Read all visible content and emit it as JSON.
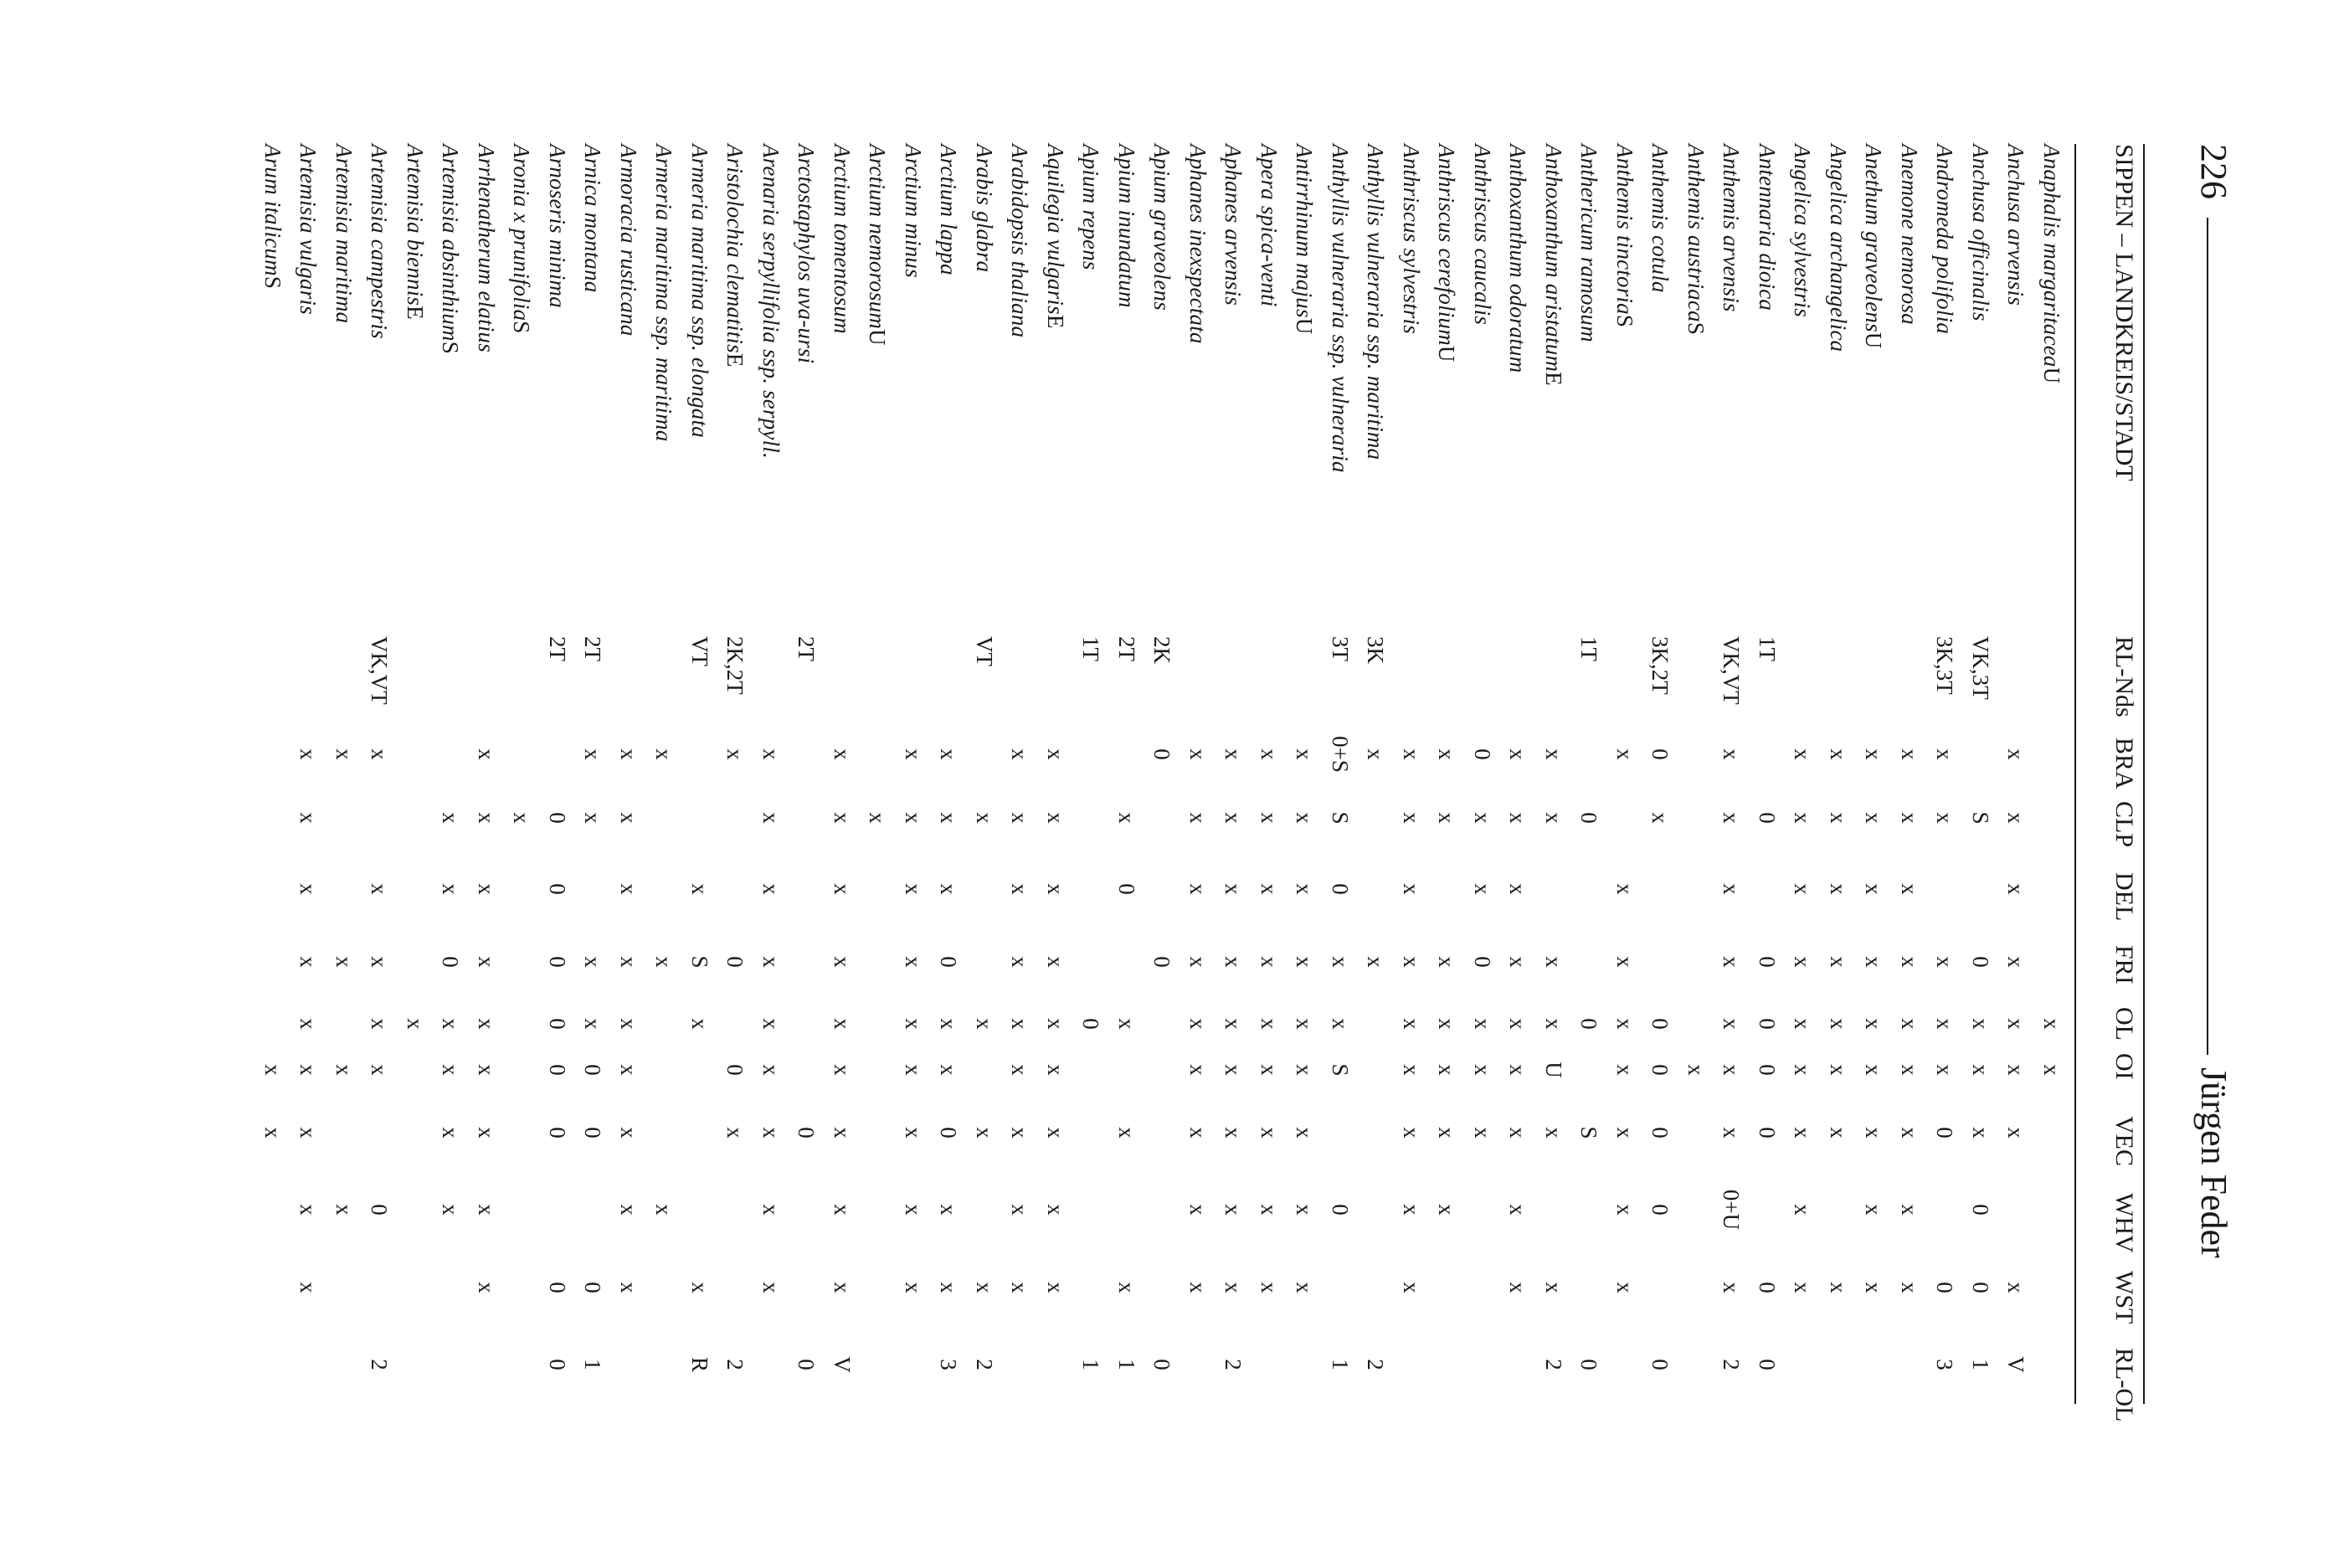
{
  "header": {
    "page_number": "226",
    "author": "Jürgen Feder"
  },
  "columns": [
    "SIPPEN – LANDKREIS/STADT",
    "RL-Nds",
    "BRA",
    "CLP",
    "DEL",
    "FRI",
    "OL",
    "OI",
    "VEC",
    "WHV",
    "WST",
    "RL-OL"
  ],
  "rows": [
    {
      "name": "Anaphalis margaritacea",
      "suffix": " U",
      "rl": "",
      "c": [
        "",
        "",
        "",
        "",
        "x",
        "x",
        "",
        "",
        "",
        "",
        ""
      ]
    },
    {
      "name": "Anchusa arvensis",
      "suffix": "",
      "rl": "",
      "c": [
        "x",
        "x",
        "x",
        "x",
        "x",
        "x",
        "x",
        "",
        "x",
        "V"
      ]
    },
    {
      "name": "Anchusa officinalis",
      "suffix": "",
      "rl": "VK,3T",
      "c": [
        "",
        "S",
        "",
        "0",
        "x",
        "x",
        "x",
        "0",
        "0",
        "1"
      ]
    },
    {
      "name": "Andromeda polifolia",
      "suffix": "",
      "rl": "3K,3T",
      "c": [
        "x",
        "x",
        "",
        "x",
        "x",
        "x",
        "0",
        "",
        "0",
        "3"
      ]
    },
    {
      "name": "Anemone nemorosa",
      "suffix": "",
      "rl": "",
      "c": [
        "x",
        "x",
        "x",
        "x",
        "x",
        "x",
        "x",
        "x",
        "x",
        ""
      ]
    },
    {
      "name": "Anethum graveolens",
      "suffix": " U",
      "rl": "",
      "c": [
        "x",
        "x",
        "x",
        "x",
        "x",
        "x",
        "x",
        "x",
        "x",
        ""
      ]
    },
    {
      "name": "Angelica archangelica",
      "suffix": "",
      "rl": "",
      "c": [
        "x",
        "x",
        "x",
        "x",
        "x",
        "x",
        "x",
        "",
        "x",
        ""
      ]
    },
    {
      "name": "Angelica sylvestris",
      "suffix": "",
      "rl": "",
      "c": [
        "x",
        "x",
        "x",
        "x",
        "x",
        "x",
        "x",
        "x",
        "x",
        ""
      ]
    },
    {
      "name": "Antennaria dioica",
      "suffix": "",
      "rl": "1T",
      "c": [
        "",
        "0",
        "",
        "0",
        "0",
        "0",
        "0",
        "",
        "0",
        "0"
      ]
    },
    {
      "name": "Anthemis arvensis",
      "suffix": "",
      "rl": "VK,VT",
      "c": [
        "x",
        "x",
        "x",
        "x",
        "x",
        "x",
        "x",
        "0+U",
        "x",
        "2"
      ]
    },
    {
      "name": "Anthemis austriaca",
      "suffix": " S",
      "rl": "",
      "c": [
        "",
        "",
        "",
        "",
        "",
        "x",
        "",
        "",
        "",
        ""
      ]
    },
    {
      "name": "Anthemis cotula",
      "suffix": "",
      "rl": "3K,2T",
      "c": [
        "0",
        "x",
        "",
        "",
        "0",
        "0",
        "0",
        "0",
        "",
        "0"
      ]
    },
    {
      "name": "Anthemis tinctoria",
      "suffix": " S",
      "rl": "",
      "c": [
        "x",
        "",
        "x",
        "x",
        "x",
        "x",
        "x",
        "x",
        "x",
        ""
      ]
    },
    {
      "name": "Anthericum ramosum",
      "suffix": "",
      "rl": "1T",
      "c": [
        "",
        "0",
        "",
        "",
        "0",
        "",
        "S",
        "",
        "",
        "0"
      ]
    },
    {
      "name": "Anthoxanthum aristatum",
      "suffix": " E",
      "rl": "",
      "c": [
        "x",
        "x",
        "",
        "x",
        "x",
        "U",
        "x",
        "",
        "x",
        "2"
      ]
    },
    {
      "name": "Anthoxanthum odoratum",
      "suffix": "",
      "rl": "",
      "c": [
        "x",
        "x",
        "x",
        "x",
        "x",
        "x",
        "x",
        "x",
        "x",
        ""
      ]
    },
    {
      "name": "Anthriscus caucalis",
      "suffix": "",
      "rl": "",
      "c": [
        "0",
        "x",
        "x",
        "0",
        "x",
        "x",
        "x",
        "",
        "",
        ""
      ]
    },
    {
      "name": "Anthriscus cerefolium",
      "suffix": " U",
      "rl": "",
      "c": [
        "x",
        "x",
        "",
        "x",
        "x",
        "x",
        "x",
        "x",
        "",
        ""
      ]
    },
    {
      "name": "Anthriscus sylvestris",
      "suffix": "",
      "rl": "",
      "c": [
        "x",
        "x",
        "x",
        "x",
        "x",
        "x",
        "x",
        "x",
        "x",
        ""
      ]
    },
    {
      "name": "Anthyllis vulneraria ssp. maritima",
      "suffix": "",
      "rl": "3K",
      "c": [
        "x",
        "",
        "",
        "x",
        "",
        "",
        "",
        "",
        "",
        "2"
      ]
    },
    {
      "name": "Anthyllis vulneraria ssp. vulneraria",
      "suffix": "",
      "rl": "3T",
      "c": [
        "0+S",
        "S",
        "0",
        "x",
        "x",
        "S",
        "",
        "0",
        "",
        "1"
      ]
    },
    {
      "name": "Antirrhinum majus",
      "suffix": " U",
      "rl": "",
      "c": [
        "x",
        "x",
        "x",
        "x",
        "x",
        "x",
        "x",
        "x",
        "x",
        ""
      ]
    },
    {
      "name": "Apera spica-venti",
      "suffix": "",
      "rl": "",
      "c": [
        "x",
        "x",
        "x",
        "x",
        "x",
        "x",
        "x",
        "x",
        "x",
        ""
      ]
    },
    {
      "name": "Aphanes arvensis",
      "suffix": "",
      "rl": "",
      "c": [
        "x",
        "x",
        "x",
        "x",
        "x",
        "x",
        "x",
        "x",
        "x",
        "2"
      ]
    },
    {
      "name": "Aphanes inexspectata",
      "suffix": "",
      "rl": "",
      "c": [
        "x",
        "x",
        "x",
        "x",
        "x",
        "x",
        "x",
        "x",
        "x",
        ""
      ]
    },
    {
      "name": "Apium graveolens",
      "suffix": "",
      "rl": "2K",
      "c": [
        "0",
        "",
        "",
        "0",
        "",
        "",
        "",
        "",
        "",
        "0"
      ]
    },
    {
      "name": "Apium inundatum",
      "suffix": "",
      "rl": "2T",
      "c": [
        "",
        "x",
        "0",
        "",
        "x",
        "",
        "x",
        "",
        "x",
        "1"
      ]
    },
    {
      "name": "Apium repens",
      "suffix": "",
      "rl": "1T",
      "c": [
        "",
        "",
        "",
        "",
        "0",
        "",
        "",
        "",
        "",
        "1"
      ]
    },
    {
      "name": "Aquilegia vulgaris",
      "suffix": " E",
      "rl": "",
      "c": [
        "x",
        "x",
        "x",
        "x",
        "x",
        "x",
        "x",
        "x",
        "x",
        ""
      ]
    },
    {
      "name": "Arabidopsis thaliana",
      "suffix": "",
      "rl": "",
      "c": [
        "x",
        "x",
        "x",
        "x",
        "x",
        "x",
        "x",
        "x",
        "x",
        ""
      ]
    },
    {
      "name": "Arabis glabra",
      "suffix": "",
      "rl": "VT",
      "c": [
        "",
        "x",
        "",
        "",
        "x",
        "",
        "x",
        "",
        "x",
        "2"
      ]
    },
    {
      "name": "Arctium lappa",
      "suffix": "",
      "rl": "",
      "c": [
        "x",
        "x",
        "x",
        "0",
        "x",
        "x",
        "0",
        "x",
        "x",
        "3"
      ]
    },
    {
      "name": "Arctium minus",
      "suffix": "",
      "rl": "",
      "c": [
        "x",
        "x",
        "x",
        "x",
        "x",
        "x",
        "x",
        "x",
        "x",
        ""
      ]
    },
    {
      "name": "Arctium nemorosum",
      "suffix": " U",
      "rl": "",
      "c": [
        "",
        "x",
        "",
        "",
        "",
        "",
        "",
        "",
        "",
        ""
      ]
    },
    {
      "name": "Arctium tomentosum",
      "suffix": "",
      "rl": "",
      "c": [
        "x",
        "x",
        "x",
        "x",
        "x",
        "x",
        "x",
        "x",
        "x",
        "V"
      ]
    },
    {
      "name": "Arctostaphylos uva-ursi",
      "suffix": "",
      "rl": "2T",
      "c": [
        "",
        "",
        "",
        "",
        "",
        "",
        "0",
        "",
        "",
        "0"
      ]
    },
    {
      "name": "Arenaria serpyllifolia ssp. serpyll.",
      "suffix": "",
      "rl": "",
      "c": [
        "x",
        "x",
        "x",
        "x",
        "x",
        "x",
        "x",
        "x",
        "x",
        ""
      ]
    },
    {
      "name": "Aristolochia clematitis",
      "suffix": " E",
      "rl": "2K,2T",
      "c": [
        "x",
        "",
        "",
        "0",
        "",
        "0",
        "x",
        "",
        "",
        "2"
      ]
    },
    {
      "name": "Armeria maritima ssp. elongata",
      "suffix": "",
      "rl": "VT",
      "c": [
        "",
        "",
        "x",
        "S",
        "x",
        "",
        "",
        "",
        "x",
        "R"
      ]
    },
    {
      "name": "Armeria maritima ssp. maritima",
      "suffix": "",
      "rl": "",
      "c": [
        "x",
        "",
        "",
        "x",
        "",
        "",
        "",
        "x",
        "",
        ""
      ]
    },
    {
      "name": "Armoracia rusticana",
      "suffix": "",
      "rl": "",
      "c": [
        "x",
        "x",
        "x",
        "x",
        "x",
        "x",
        "x",
        "x",
        "x",
        ""
      ]
    },
    {
      "name": "Arnica montana",
      "suffix": "",
      "rl": "2T",
      "c": [
        "x",
        "x",
        "",
        "x",
        "x",
        "0",
        "0",
        "",
        "0",
        "1"
      ]
    },
    {
      "name": "Arnoseris minima",
      "suffix": "",
      "rl": "2T",
      "c": [
        "",
        "0",
        "0",
        "0",
        "0",
        "0",
        "0",
        "",
        "0",
        "0"
      ]
    },
    {
      "name": "Aronia x prunifolia",
      "suffix": " S",
      "rl": "",
      "c": [
        "",
        "x",
        "",
        "",
        "",
        "",
        "",
        "",
        "",
        ""
      ]
    },
    {
      "name": "Arrhenatherum elatius",
      "suffix": "",
      "rl": "",
      "c": [
        "x",
        "x",
        "x",
        "x",
        "x",
        "x",
        "x",
        "x",
        "x",
        ""
      ]
    },
    {
      "name": "Artemisia absinthium",
      "suffix": " S",
      "rl": "",
      "c": [
        "",
        "x",
        "x",
        "0",
        "x",
        "x",
        "x",
        "x",
        "",
        ""
      ]
    },
    {
      "name": "Artemisia biennis",
      "suffix": " E",
      "rl": "",
      "c": [
        "",
        "",
        "",
        "",
        "x",
        "",
        "",
        "",
        "",
        ""
      ]
    },
    {
      "name": "Artemisia campestris",
      "suffix": "",
      "rl": "VK,VT",
      "c": [
        "x",
        "",
        "x",
        "x",
        "x",
        "x",
        "",
        "0",
        "",
        "2"
      ]
    },
    {
      "name": "Artemisia maritima",
      "suffix": "",
      "rl": "",
      "c": [
        "x",
        "",
        "",
        "x",
        "",
        "x",
        "",
        "x",
        "",
        ""
      ]
    },
    {
      "name": "Artemisia vulgaris",
      "suffix": "",
      "rl": "",
      "c": [
        "x",
        "x",
        "x",
        "x",
        "x",
        "x",
        "x",
        "x",
        "x",
        ""
      ]
    },
    {
      "name": "Arum italicum",
      "suffix": " S",
      "rl": "",
      "c": [
        "",
        "",
        "",
        "",
        "",
        "x",
        "x",
        "",
        "",
        ""
      ]
    }
  ]
}
